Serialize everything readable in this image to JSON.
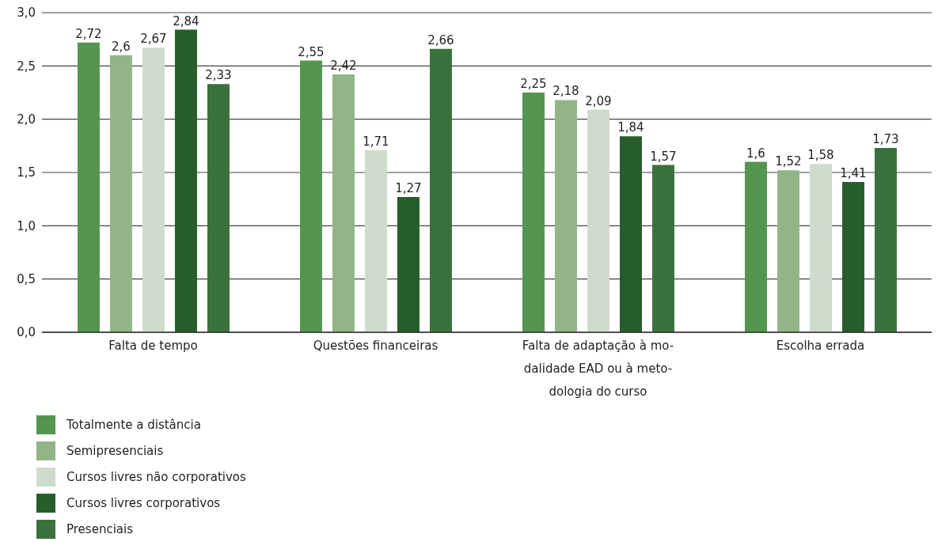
{
  "chart_data": {
    "type": "bar",
    "categories": [
      "Falta de tempo",
      "Questões financeiras",
      "Falta de adaptação à mo-\ndalidade EAD ou à meto-\ndologia do curso",
      "Escolha errada"
    ],
    "series": [
      {
        "name": "Totalmente a distância",
        "color": "#54964f",
        "values": [
          2.72,
          2.55,
          2.25,
          1.6
        ],
        "value_labels": [
          "2,72",
          "2,55",
          "2,25",
          "1,6"
        ]
      },
      {
        "name": "Semipresenciais",
        "color": "#92b588",
        "values": [
          2.6,
          2.42,
          2.18,
          1.52
        ],
        "value_labels": [
          "2,6",
          "2,42",
          "2,18",
          "1,52"
        ]
      },
      {
        "name": "Cursos livres não corporativos",
        "color": "#cfdccb",
        "values": [
          2.67,
          1.71,
          2.09,
          1.58
        ],
        "value_labels": [
          "2,67",
          "1,71",
          "2,09",
          "1,58"
        ]
      },
      {
        "name": "Cursos livres corporativos",
        "color": "#275d2c",
        "values": [
          2.84,
          1.27,
          1.84,
          1.41
        ],
        "value_labels": [
          "2,84",
          "1,27",
          "1,84",
          "1,41"
        ]
      },
      {
        "name": "Presenciais",
        "color": "#3b713c",
        "values": [
          2.33,
          2.66,
          1.57,
          1.73
        ],
        "value_labels": [
          "2,33",
          "2,66",
          "1,57",
          "1,73"
        ]
      }
    ],
    "ylim": [
      0,
      3
    ],
    "yticks": [
      {
        "value": 0,
        "label": "0,0"
      },
      {
        "value": 0.5,
        "label": "0,5"
      },
      {
        "value": 1,
        "label": "1,0"
      },
      {
        "value": 1.5,
        "label": "1,5"
      },
      {
        "value": 2,
        "label": "2,0"
      },
      {
        "value": 2.5,
        "label": "2,5"
      },
      {
        "value": 3,
        "label": "3,0"
      }
    ],
    "grid": "y",
    "legend": "bottom left"
  }
}
